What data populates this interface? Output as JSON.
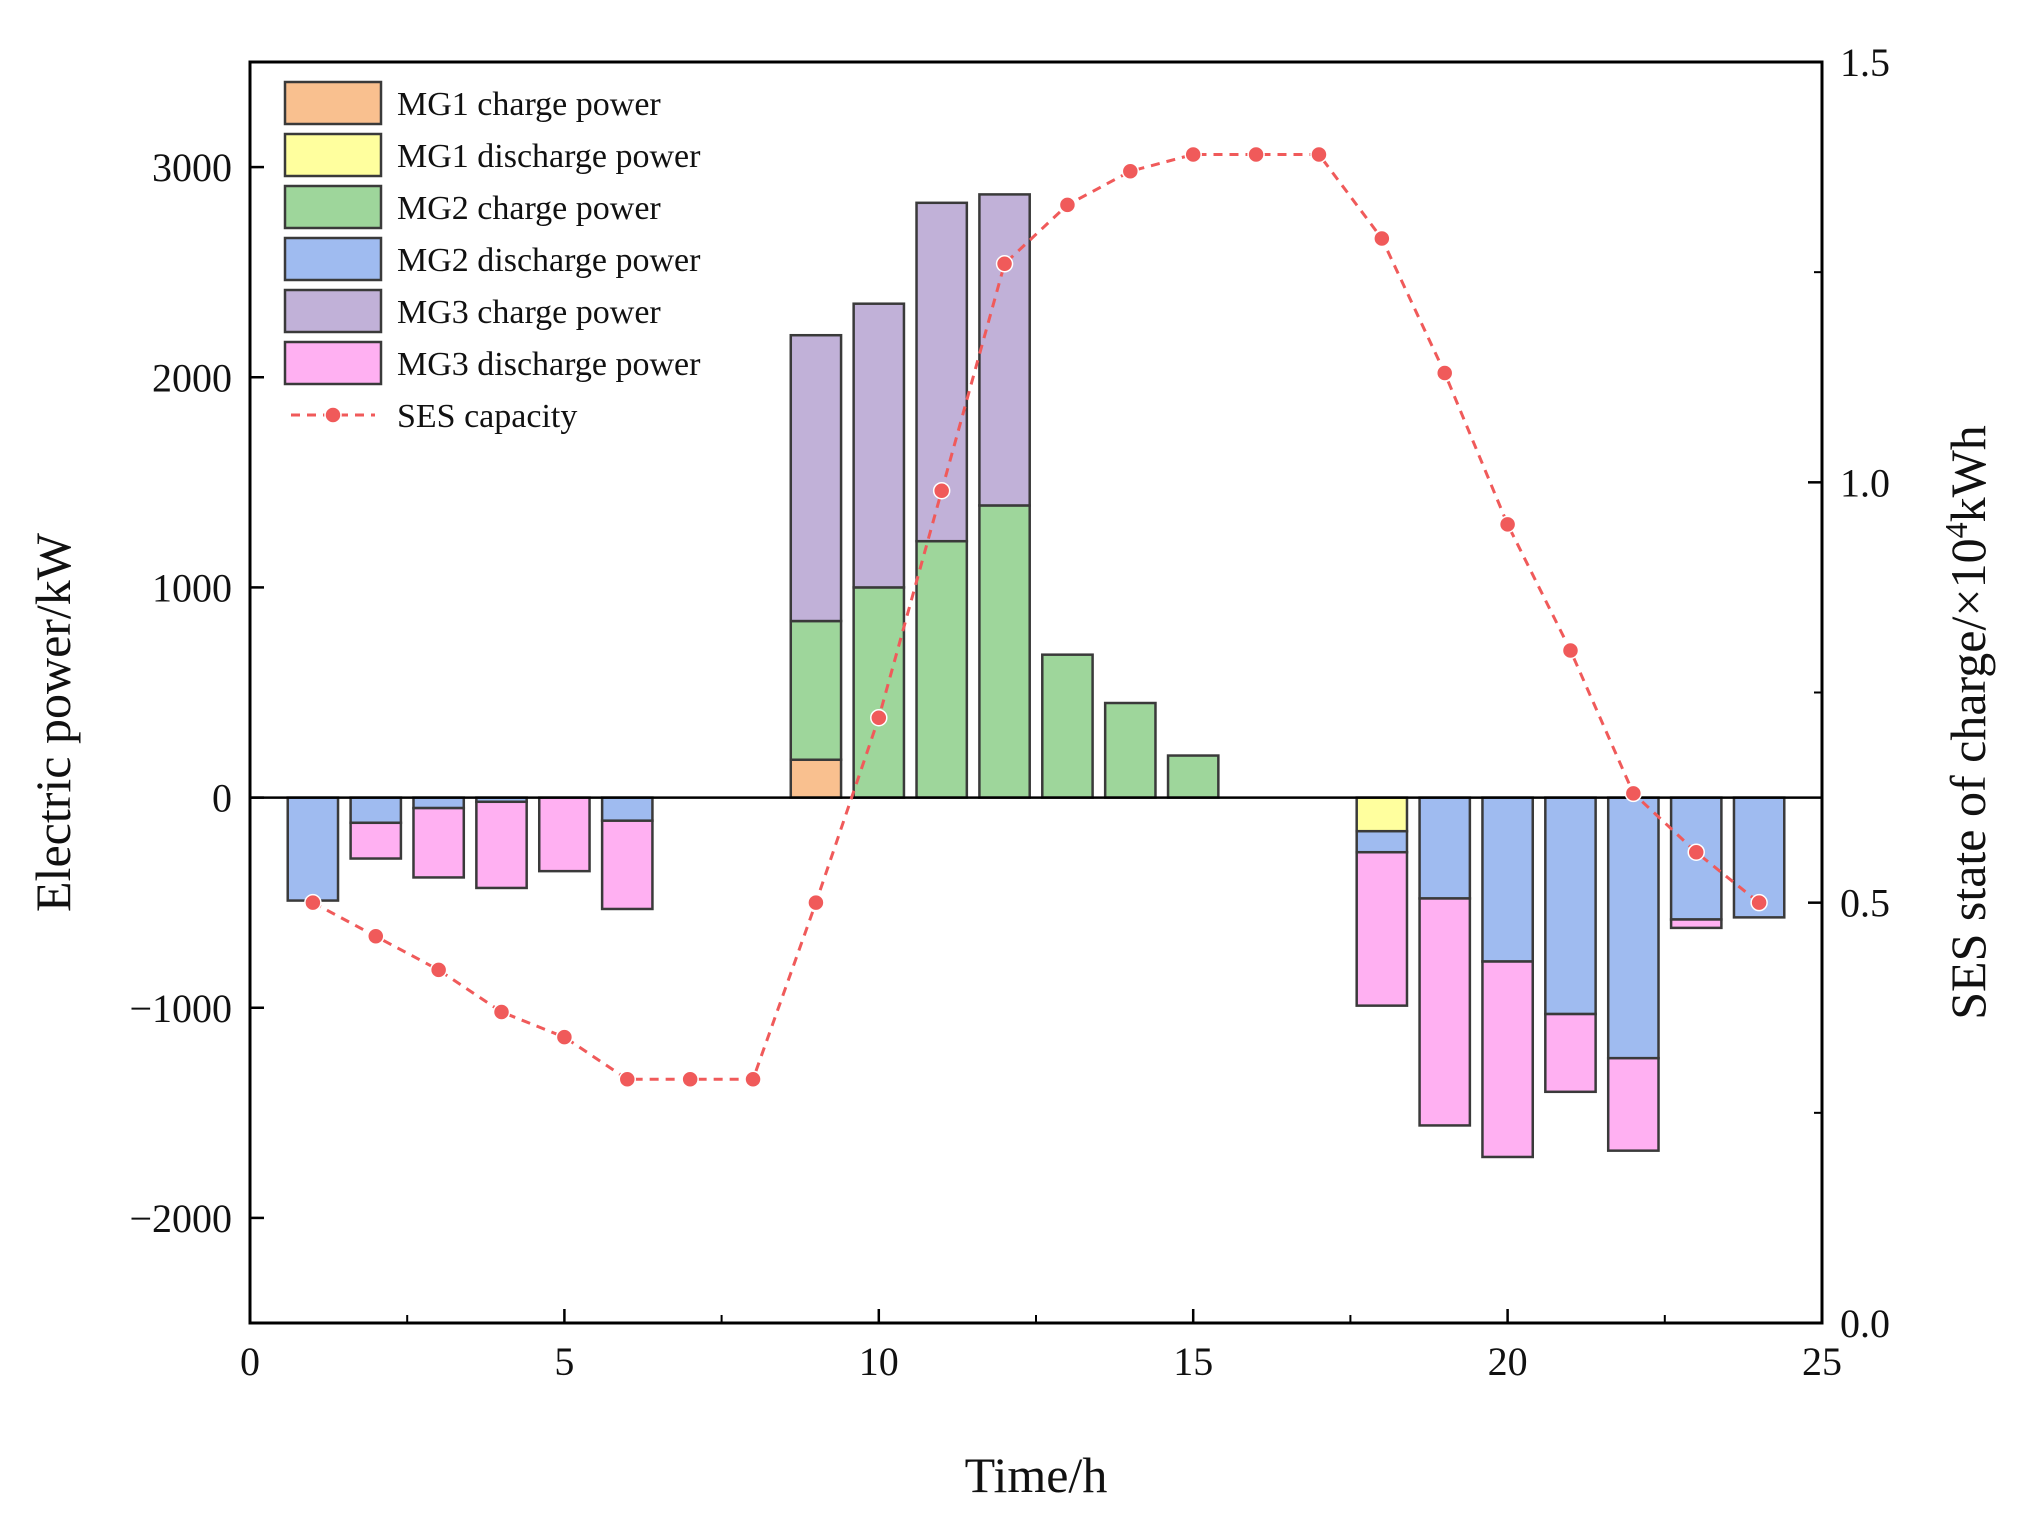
{
  "chart_data": {
    "type": "bar",
    "xlabel": "Time/h",
    "ylabel": "Electric power/kW",
    "y2label_main": "SES state of charge/×10",
    "y2label_sup": "4",
    "y2label_unit": "kWh",
    "xlim": [
      0,
      25
    ],
    "ylim": [
      -2500,
      3500
    ],
    "y2lim": [
      0.0,
      1.5
    ],
    "xticks": [
      0,
      5,
      10,
      15,
      20,
      25
    ],
    "yticks": [
      -2000,
      -1000,
      0,
      1000,
      2000,
      3000
    ],
    "y2ticks": [
      0.0,
      0.5,
      1.0,
      1.5
    ],
    "ytick_labels": [
      "−2000",
      "−1000",
      "0",
      "1000",
      "2000",
      "3000"
    ],
    "y2tick_labels": [
      "0.0",
      "0.5",
      "1.0",
      "1.5"
    ],
    "xtick_labels": [
      "0",
      "5",
      "10",
      "15",
      "20",
      "25"
    ],
    "legend_position": "top-left",
    "x": [
      1,
      2,
      3,
      4,
      5,
      6,
      7,
      8,
      9,
      10,
      11,
      12,
      13,
      14,
      15,
      16,
      17,
      18,
      19,
      20,
      21,
      22,
      23,
      24
    ],
    "bar_series": [
      {
        "name": "MG1 charge power",
        "color": "#f9c08f",
        "values": [
          0,
          0,
          0,
          0,
          0,
          0,
          0,
          0,
          180,
          0,
          0,
          0,
          0,
          0,
          0,
          0,
          0,
          0,
          0,
          0,
          0,
          0,
          0,
          0
        ]
      },
      {
        "name": "MG2 charge power",
        "color": "#9ed69b",
        "values": [
          0,
          0,
          0,
          0,
          0,
          0,
          0,
          0,
          660,
          1000,
          1220,
          1390,
          680,
          450,
          200,
          0,
          0,
          0,
          0,
          0,
          0,
          0,
          0,
          0
        ]
      },
      {
        "name": "MG3 charge power",
        "color": "#c1b1d8",
        "values": [
          0,
          0,
          0,
          0,
          0,
          0,
          0,
          0,
          1360,
          1350,
          1610,
          1480,
          0,
          0,
          0,
          0,
          0,
          0,
          0,
          0,
          0,
          0,
          0,
          0
        ]
      },
      {
        "name": "MG1 discharge power",
        "color": "#ffff9e",
        "values": [
          0,
          0,
          0,
          0,
          0,
          0,
          0,
          0,
          0,
          0,
          0,
          0,
          0,
          0,
          0,
          0,
          0,
          -160,
          0,
          0,
          0,
          0,
          0,
          0
        ]
      },
      {
        "name": "MG2 discharge power",
        "color": "#9fbbf0",
        "values": [
          -490,
          -120,
          -50,
          -20,
          0,
          -110,
          0,
          0,
          0,
          0,
          0,
          0,
          0,
          0,
          0,
          0,
          0,
          -100,
          -480,
          -780,
          -1030,
          -1240,
          -580,
          -570
        ]
      },
      {
        "name": "MG3 discharge power",
        "color": "#ffb0f2",
        "values": [
          0,
          -170,
          -330,
          -410,
          -350,
          -420,
          0,
          0,
          0,
          0,
          0,
          0,
          0,
          0,
          0,
          0,
          0,
          -730,
          -1080,
          -930,
          -370,
          -440,
          -40,
          0
        ]
      }
    ],
    "legend_order": [
      "MG1 charge power",
      "MG1 discharge power",
      "MG2 charge power",
      "MG2 discharge power",
      "MG3 charge power",
      "MG3 discharge power",
      "SES capacity"
    ],
    "line_series": {
      "name": "SES capacity",
      "axis": "right",
      "color": "#f05a5a",
      "values": [
        0.5,
        0.46,
        0.42,
        0.37,
        0.34,
        0.29,
        0.29,
        0.29,
        0.5,
        0.72,
        0.99,
        1.26,
        1.33,
        1.37,
        1.39,
        1.39,
        1.39,
        1.29,
        1.13,
        0.95,
        0.8,
        0.63,
        0.56,
        0.5
      ]
    }
  }
}
